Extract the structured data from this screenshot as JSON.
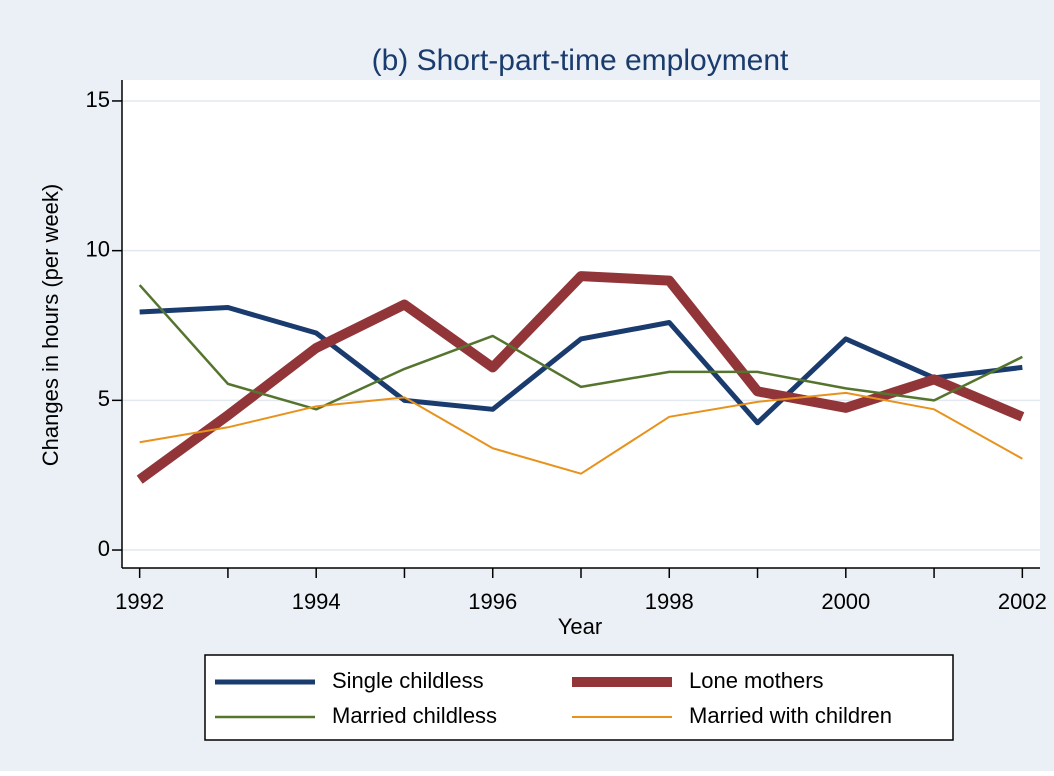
{
  "chart_data": {
    "type": "line",
    "title": "(b) Short-part-time employment",
    "x_label": "Year",
    "y_label": "Changes in hours (per week)",
    "x": [
      1992,
      1993,
      1994,
      1995,
      1996,
      1997,
      1998,
      1999,
      2000,
      2001,
      2002
    ],
    "series": [
      {
        "name": "Single childless",
        "color": "#1a3b6e",
        "width": 5,
        "values": [
          7.95,
          8.1,
          7.25,
          5.0,
          4.7,
          7.05,
          7.6,
          4.25,
          7.05,
          5.75,
          6.1
        ]
      },
      {
        "name": "Lone mothers",
        "color": "#913539",
        "width": 10,
        "values": [
          2.35,
          4.5,
          6.75,
          8.2,
          6.1,
          9.15,
          9.0,
          5.3,
          4.75,
          5.7,
          4.45
        ]
      },
      {
        "name": "Married childless",
        "color": "#55752f",
        "width": 2.5,
        "values": [
          8.85,
          5.55,
          4.7,
          6.05,
          7.15,
          5.45,
          5.95,
          5.95,
          5.4,
          5.0,
          6.45
        ]
      },
      {
        "name": "Married with children",
        "color": "#e8921c",
        "width": 2,
        "values": [
          3.6,
          4.1,
          4.8,
          5.1,
          3.4,
          2.55,
          4.45,
          4.95,
          5.25,
          4.7,
          3.05
        ]
      }
    ],
    "xlim": [
      1991.8,
      2002.2
    ],
    "xticks": [
      1992,
      1994,
      1996,
      1998,
      2000,
      2002
    ],
    "xminor_ticks": [
      1993,
      1995,
      1997,
      1999,
      2001
    ],
    "ylim": [
      -0.6,
      15.7
    ],
    "yticks": [
      0,
      5,
      10,
      15
    ],
    "grid": true
  }
}
